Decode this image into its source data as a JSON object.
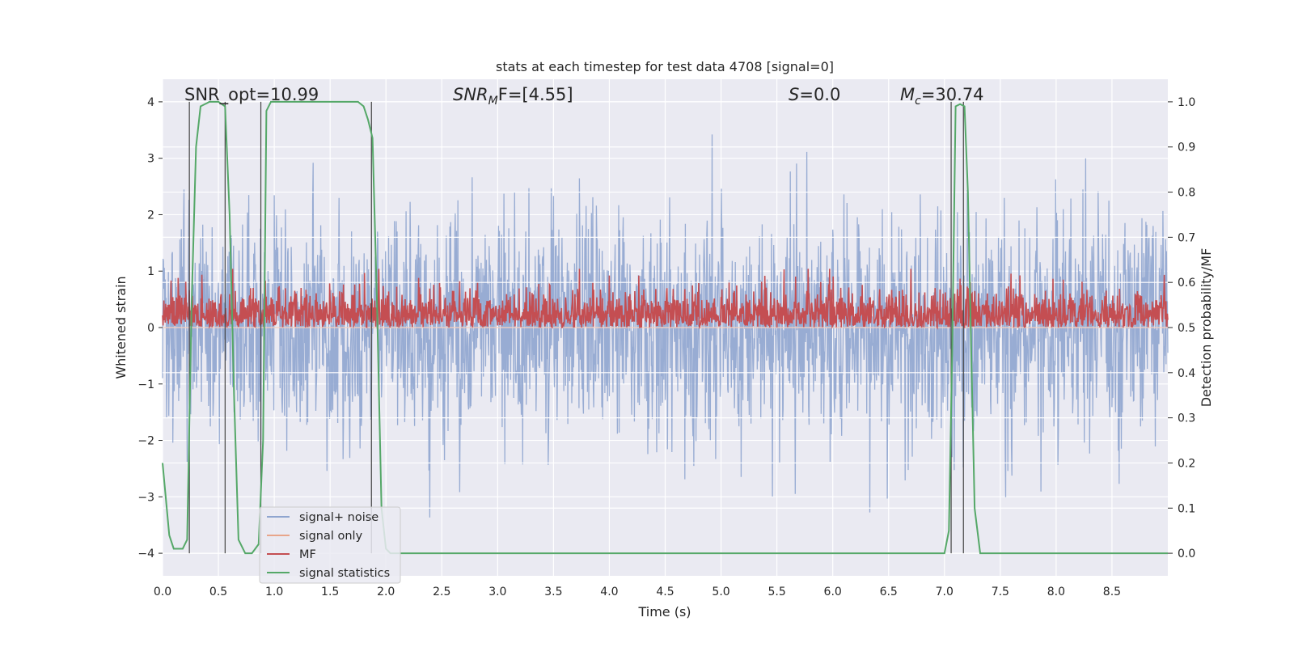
{
  "chart_data": {
    "type": "line",
    "title": "stats at each timestep for test data 4708 [signal=0]",
    "xlabel": "Time (s)",
    "ylabel_left": "Whitened strain",
    "ylabel_right": "Detection probability/MF",
    "xlim": [
      0,
      9
    ],
    "ylim_left": [
      -4.4,
      4.4
    ],
    "ylim_right": [
      -0.05,
      1.05
    ],
    "x_ticks": [
      0.0,
      0.5,
      1.0,
      1.5,
      2.0,
      2.5,
      3.0,
      3.5,
      4.0,
      4.5,
      5.0,
      5.5,
      6.0,
      6.5,
      7.0,
      7.5,
      8.0,
      8.5
    ],
    "x_tick_labels": [
      "0.0",
      "0.5",
      "1.0",
      "1.5",
      "2.0",
      "2.5",
      "3.0",
      "3.5",
      "4.0",
      "4.5",
      "5.0",
      "5.5",
      "6.0",
      "6.5",
      "7.0",
      "7.5",
      "8.0",
      "8.5"
    ],
    "y_left_ticks": [
      -4,
      -3,
      -2,
      -1,
      0,
      1,
      2,
      3,
      4
    ],
    "y_left_tick_labels": [
      "−4",
      "−3",
      "−2",
      "−1",
      "0",
      "1",
      "2",
      "3",
      "4"
    ],
    "y_right_ticks": [
      0.0,
      0.1,
      0.2,
      0.3,
      0.4,
      0.5,
      0.6,
      0.7,
      0.8,
      0.9,
      1.0
    ],
    "y_right_tick_labels": [
      "0.0",
      "0.1",
      "0.2",
      "0.3",
      "0.4",
      "0.5",
      "0.6",
      "0.7",
      "0.8",
      "0.9",
      "1.0"
    ],
    "grid": true,
    "legend_location": "lower-left",
    "annotations": {
      "snr_opt": "SNR_opt=10.99",
      "snr_mf_sym": "SNR",
      "snr_mf_sub": "M",
      "snr_mf_val": "F=[4.55]",
      "s_sym": "S",
      "s_val": "=0.0",
      "mc_sym": "M",
      "mc_sub": "c",
      "mc_val": "=30.74"
    },
    "vertical_markers": [
      0.24,
      0.56,
      0.88,
      1.87,
      7.06,
      7.17
    ],
    "series": [
      {
        "name": "signal+ noise",
        "color": "#8fa5cf",
        "axis": "left",
        "kind": "noise",
        "sample_rate_hz": 250,
        "amplitude_sigma": 1.0,
        "min": -4.0,
        "max": 3.8
      },
      {
        "name": "signal only",
        "color": "#e8a58a",
        "axis": "left",
        "kind": "flat",
        "value": 0
      },
      {
        "name": "MF",
        "color": "#c44e52",
        "axis": "right",
        "kind": "noise",
        "sample_rate_hz": 250,
        "base": 0.5,
        "min": 0.5,
        "max": 0.63
      },
      {
        "name": "signal statistics",
        "color": "#55a868",
        "axis": "right",
        "kind": "line",
        "x": [
          0.0,
          0.06,
          0.1,
          0.18,
          0.22,
          0.26,
          0.3,
          0.34,
          0.42,
          0.5,
          0.56,
          0.6,
          0.64,
          0.68,
          0.74,
          0.8,
          0.86,
          0.9,
          0.93,
          0.97,
          1.1,
          1.5,
          1.75,
          1.8,
          1.84,
          1.88,
          1.92,
          1.96,
          2.0,
          2.04,
          2.1,
          3.0,
          4.0,
          5.0,
          6.0,
          6.9,
          7.0,
          7.04,
          7.07,
          7.1,
          7.14,
          7.18,
          7.21,
          7.24,
          7.27,
          7.32,
          7.36,
          8.0,
          9.0
        ],
        "y": [
          0.2,
          0.04,
          0.01,
          0.01,
          0.03,
          0.55,
          0.9,
          0.99,
          1.0,
          1.0,
          0.99,
          0.75,
          0.35,
          0.03,
          0.0,
          0.0,
          0.02,
          0.25,
          0.98,
          1.0,
          1.0,
          1.0,
          1.0,
          0.99,
          0.96,
          0.92,
          0.55,
          0.1,
          0.01,
          0.0,
          0.0,
          0.0,
          0.0,
          0.0,
          0.0,
          0.0,
          0.0,
          0.05,
          0.45,
          0.99,
          0.995,
          0.99,
          0.8,
          0.45,
          0.1,
          0.0,
          0.0,
          0.0,
          0.0
        ]
      }
    ]
  }
}
